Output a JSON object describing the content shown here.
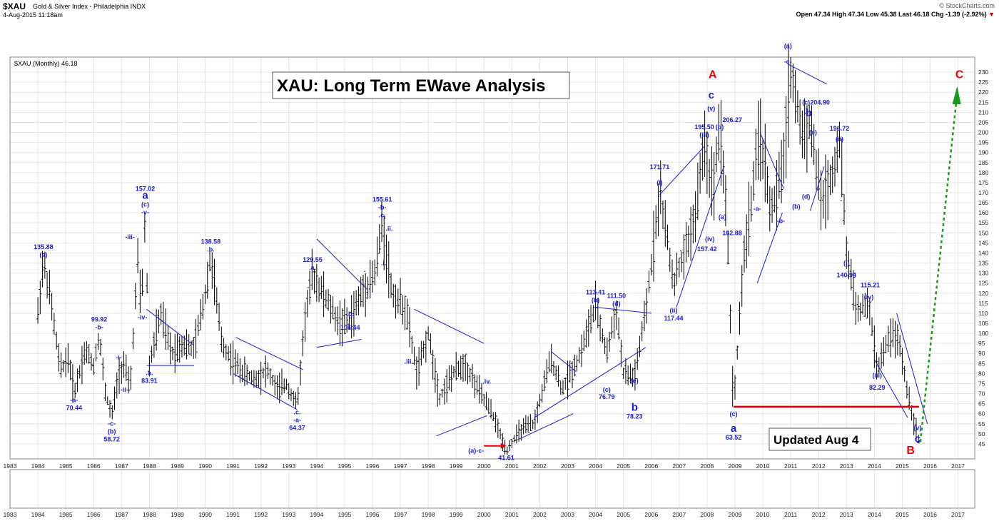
{
  "header": {
    "symbol": "$XAU",
    "name": "Gold & Silver Index - Philadelphia INDX",
    "date": "4-Aug-2015 11:18am",
    "copyright": "© StockCharts.com",
    "quote": "Open 47.34  High 47.34  Low 45.38  Last 46.18  Chg -1.39 (-2.92%)"
  },
  "legend": "$XAU (Monthly) 46.18",
  "title_box": "XAU: Long Term EWave Analysis",
  "updated_box": "Updated Aug 4",
  "colors": {
    "price": "#000000",
    "wave_label": "#1a1ad8",
    "trendline": "#1a1ad8",
    "red": "#e00000",
    "green": "#1a9a1a",
    "grid": "#e4e4e4"
  },
  "chart_data": {
    "type": "ohlc_bar",
    "title": "XAU: Long Term EWave Analysis",
    "frequency": "monthly",
    "xlim": [
      1983.0,
      2017.6
    ],
    "ylim": [
      40,
      235
    ],
    "y_ticks": [
      45,
      50,
      55,
      60,
      65,
      70,
      75,
      80,
      85,
      90,
      95,
      100,
      105,
      110,
      115,
      120,
      125,
      130,
      135,
      140,
      145,
      150,
      155,
      160,
      165,
      170,
      175,
      180,
      185,
      190,
      195,
      200,
      205,
      210,
      215,
      220,
      225,
      230
    ],
    "x_ticks": [
      "1983",
      "1984",
      "1985",
      "1986",
      "1987",
      "1988",
      "1989",
      "1990",
      "1991",
      "1992",
      "1993",
      "1994",
      "1995",
      "1996",
      "1997",
      "1998",
      "1999",
      "2000",
      "2001",
      "2002",
      "2003",
      "2004",
      "2005",
      "2006",
      "2007",
      "2008",
      "2009",
      "2010",
      "2011",
      "2012",
      "2013",
      "2014",
      "2015",
      "2016",
      "2017"
    ],
    "price_path": [
      [
        1984.0,
        110
      ],
      [
        1984.2,
        135.88
      ],
      [
        1984.45,
        118
      ],
      [
        1984.8,
        82
      ],
      [
        1985.1,
        88
      ],
      [
        1985.3,
        70.44
      ],
      [
        1985.7,
        92
      ],
      [
        1986.0,
        84
      ],
      [
        1986.2,
        99.92
      ],
      [
        1986.4,
        72
      ],
      [
        1986.65,
        58.72
      ],
      [
        1986.9,
        80
      ],
      [
        1987.1,
        85
      ],
      [
        1987.3,
        72
      ],
      [
        1987.6,
        140
      ],
      [
        1987.7,
        110
      ],
      [
        1987.85,
        157.02
      ],
      [
        1988.0,
        83.91
      ],
      [
        1988.4,
        110
      ],
      [
        1988.8,
        90
      ],
      [
        1989.2,
        95
      ],
      [
        1989.6,
        92
      ],
      [
        1990.0,
        120
      ],
      [
        1990.2,
        138.58
      ],
      [
        1990.6,
        95
      ],
      [
        1991.0,
        86
      ],
      [
        1991.4,
        80
      ],
      [
        1991.8,
        77
      ],
      [
        1992.2,
        82
      ],
      [
        1992.6,
        72
      ],
      [
        1992.9,
        75
      ],
      [
        1993.3,
        64.37
      ],
      [
        1993.6,
        110
      ],
      [
        1993.85,
        129.55
      ],
      [
        1994.3,
        118
      ],
      [
        1994.8,
        105
      ],
      [
        1995.2,
        106.44
      ],
      [
        1995.6,
        120
      ],
      [
        1996.1,
        130
      ],
      [
        1996.35,
        155.61
      ],
      [
        1996.7,
        120
      ],
      [
        1997.2,
        112
      ],
      [
        1997.6,
        80
      ],
      [
        1998.0,
        100
      ],
      [
        1998.4,
        68
      ],
      [
        1998.9,
        80
      ],
      [
        1999.3,
        85
      ],
      [
        1999.8,
        72
      ],
      [
        2000.3,
        60
      ],
      [
        2000.8,
        41.61
      ],
      [
        2001.3,
        52
      ],
      [
        2001.8,
        55
      ],
      [
        2002.4,
        88
      ],
      [
        2002.8,
        72
      ],
      [
        2003.4,
        88
      ],
      [
        2004.0,
        113.41
      ],
      [
        2004.4,
        90
      ],
      [
        2004.75,
        111.5
      ],
      [
        2005.0,
        80
      ],
      [
        2005.4,
        78.23
      ],
      [
        2005.8,
        110
      ],
      [
        2006.3,
        171.71
      ],
      [
        2006.8,
        125
      ],
      [
        2007.2,
        140
      ],
      [
        2007.6,
        160
      ],
      [
        2007.9,
        195.5
      ],
      [
        2008.2,
        170
      ],
      [
        2008.45,
        206.27
      ],
      [
        2008.7,
        160
      ],
      [
        2008.95,
        63.52
      ],
      [
        2009.3,
        135
      ],
      [
        2009.9,
        200
      ],
      [
        2010.3,
        160
      ],
      [
        2010.7,
        180
      ],
      [
        2011.0,
        230
      ],
      [
        2011.4,
        200
      ],
      [
        2011.7,
        204.9
      ],
      [
        2012.1,
        165
      ],
      [
        2012.5,
        180
      ],
      [
        2012.75,
        196.72
      ],
      [
        2013.0,
        140.94
      ],
      [
        2013.4,
        110
      ],
      [
        2013.8,
        115.21
      ],
      [
        2014.1,
        82.29
      ],
      [
        2014.6,
        100
      ],
      [
        2014.9,
        95
      ],
      [
        2015.2,
        70
      ],
      [
        2015.5,
        52
      ],
      [
        2015.6,
        46.18
      ]
    ],
    "annotations": [
      {
        "text": "135.88",
        "x": 1984.2,
        "y": 135.88,
        "pos": "above2"
      },
      {
        "text": "(a)",
        "x": 1984.2,
        "y": 135.88,
        "pos": "above1"
      },
      {
        "text": "-a-",
        "x": 1985.3,
        "y": 70.44,
        "pos": "below1"
      },
      {
        "text": "70.44",
        "x": 1985.3,
        "y": 70.44,
        "pos": "below2"
      },
      {
        "text": "99.92",
        "x": 1986.2,
        "y": 99.92,
        "pos": "above2"
      },
      {
        "text": "-b-",
        "x": 1986.2,
        "y": 99.92,
        "pos": "above1"
      },
      {
        "text": "-c-",
        "x": 1986.65,
        "y": 58.72,
        "pos": "below1"
      },
      {
        "text": "(b)",
        "x": 1986.65,
        "y": 58.72,
        "pos": "below2"
      },
      {
        "text": "58.72",
        "x": 1986.65,
        "y": 58.72,
        "pos": "below3"
      },
      {
        "text": "-i-",
        "x": 1986.9,
        "y": 88,
        "pos": "plain"
      },
      {
        "text": "-ii-",
        "x": 1987.1,
        "y": 72,
        "pos": "plain"
      },
      {
        "text": "-iii-",
        "x": 1987.3,
        "y": 148,
        "pos": "plain"
      },
      {
        "text": "-iv-",
        "x": 1987.75,
        "y": 108,
        "pos": "plain"
      },
      {
        "text": "157.02",
        "x": 1987.85,
        "y": 157.02,
        "pos": "above4"
      },
      {
        "text": "(c)",
        "x": 1987.85,
        "y": 157.02,
        "pos": "above2"
      },
      {
        "text": "-v-",
        "x": 1987.85,
        "y": 157.02,
        "pos": "above1"
      },
      {
        "text": ".a.",
        "x": 1988.0,
        "y": 83.91,
        "pos": "below1"
      },
      {
        "text": "83.91",
        "x": 1988.0,
        "y": 83.91,
        "pos": "below2"
      },
      {
        "text": "138.58",
        "x": 1990.2,
        "y": 138.58,
        "pos": "above2"
      },
      {
        "text": ".b.",
        "x": 1990.2,
        "y": 138.58,
        "pos": "above1"
      },
      {
        "text": ".c.",
        "x": 1993.3,
        "y": 64.37,
        "pos": "below1"
      },
      {
        "text": "-a-",
        "x": 1993.3,
        "y": 64.37,
        "pos": "below2"
      },
      {
        "text": "64.37",
        "x": 1993.3,
        "y": 64.37,
        "pos": "below3"
      },
      {
        "text": "129.55",
        "x": 1993.85,
        "y": 129.55,
        "pos": "above2"
      },
      {
        "text": ".a.",
        "x": 1993.85,
        "y": 129.55,
        "pos": "above1"
      },
      {
        "text": ".b.",
        "x": 1995.2,
        "y": 106.44,
        "pos": "above1"
      },
      {
        "text": "106.44",
        "x": 1995.2,
        "y": 106.44,
        "pos": "below1"
      },
      {
        "text": "155.61",
        "x": 1996.35,
        "y": 155.61,
        "pos": "above3"
      },
      {
        "text": "-b-",
        "x": 1996.35,
        "y": 155.61,
        "pos": "above2"
      },
      {
        "text": ".c.",
        "x": 1996.35,
        "y": 155.61,
        "pos": "above1"
      },
      {
        "text": ".ii.",
        "x": 1996.6,
        "y": 152,
        "pos": "plain"
      },
      {
        "text": ".i.",
        "x": 1996.4,
        "y": 135,
        "pos": "plain"
      },
      {
        "text": ".iii.",
        "x": 1997.3,
        "y": 86,
        "pos": "plain"
      },
      {
        "text": ".iv.",
        "x": 2000.1,
        "y": 76,
        "pos": "plain"
      },
      {
        "text": "(a)-c-",
        "x": 2000.0,
        "y": 41.61,
        "pos": "plainleft"
      },
      {
        "text": "41.61",
        "x": 2000.8,
        "y": 41.61,
        "pos": "below1"
      },
      {
        "text": "113.41",
        "x": 2004.0,
        "y": 113.41,
        "pos": "above2"
      },
      {
        "text": "(b)",
        "x": 2004.0,
        "y": 113.41,
        "pos": "above1"
      },
      {
        "text": "111.50",
        "x": 2004.75,
        "y": 111.5,
        "pos": "above2"
      },
      {
        "text": "(d)",
        "x": 2004.75,
        "y": 111.5,
        "pos": "above1"
      },
      {
        "text": "(c)",
        "x": 2004.4,
        "y": 72,
        "pos": "plain"
      },
      {
        "text": "76.79",
        "x": 2004.4,
        "y": 72,
        "pos": "below1"
      },
      {
        "text": "(e)",
        "x": 2005.4,
        "y": 80,
        "pos": "below1"
      },
      {
        "text": "78.23",
        "x": 2005.4,
        "y": 70,
        "pos": "below3"
      },
      {
        "text": "171.71",
        "x": 2006.3,
        "y": 171.71,
        "pos": "above3"
      },
      {
        "text": "(i)",
        "x": 2006.3,
        "y": 171.71,
        "pos": "above1"
      },
      {
        "text": "(ii)",
        "x": 2006.8,
        "y": 115,
        "pos": "below1"
      },
      {
        "text": "117.44",
        "x": 2006.8,
        "y": 115,
        "pos": "below2"
      },
      {
        "text": "195.50",
        "x": 2007.9,
        "y": 195.5,
        "pos": "above2"
      },
      {
        "text": "(iii)",
        "x": 2007.9,
        "y": 195.5,
        "pos": "above1"
      },
      {
        "text": "(v)",
        "x": 2008.15,
        "y": 212,
        "pos": "plain"
      },
      {
        "text": "206.27",
        "x": 2008.45,
        "y": 206.27,
        "pos": "plainright"
      },
      {
        "text": "(b)",
        "x": 2008.45,
        "y": 206.27,
        "pos": "below1"
      },
      {
        "text": "(a)",
        "x": 2008.55,
        "y": 158,
        "pos": "plain"
      },
      {
        "text": "162.88",
        "x": 2008.9,
        "y": 150,
        "pos": "plain"
      },
      {
        "text": "(iv)",
        "x": 2008.1,
        "y": 147,
        "pos": "plain"
      },
      {
        "text": "157.42",
        "x": 2008.0,
        "y": 142,
        "pos": "plain"
      },
      {
        "text": "(c)",
        "x": 2008.95,
        "y": 63.52,
        "pos": "below1"
      },
      {
        "text": "63.52",
        "x": 2008.95,
        "y": 63.52,
        "pos": "below4"
      },
      {
        "text": "-a-",
        "x": 2009.8,
        "y": 162,
        "pos": "plain"
      },
      {
        "text": "-b-",
        "x": 2010.65,
        "y": 156,
        "pos": "plain"
      },
      {
        "text": "(a)",
        "x": 2010.9,
        "y": 232,
        "pos": "above3"
      },
      {
        "text": "-c-",
        "x": 2010.9,
        "y": 232,
        "pos": "above1"
      },
      {
        "text": "(c)",
        "x": 2011.55,
        "y": 215,
        "pos": "plain"
      },
      {
        "text": "204.90",
        "x": 2012.05,
        "y": 215,
        "pos": "plain"
      },
      {
        "text": "(e)",
        "x": 2011.8,
        "y": 200,
        "pos": "plain"
      },
      {
        "text": "196.72",
        "x": 2012.75,
        "y": 202,
        "pos": "plain"
      },
      {
        "text": "(ii)",
        "x": 2012.75,
        "y": 196.72,
        "pos": "plain"
      },
      {
        "text": "(d)",
        "x": 2011.55,
        "y": 168,
        "pos": "plain"
      },
      {
        "text": "(b)",
        "x": 2011.2,
        "y": 163,
        "pos": "plain"
      },
      {
        "text": "(i)",
        "x": 2013.0,
        "y": 135,
        "pos": "plain"
      },
      {
        "text": "140.94",
        "x": 2013.0,
        "y": 129,
        "pos": "plain"
      },
      {
        "text": "115.21",
        "x": 2013.85,
        "y": 124,
        "pos": "plain"
      },
      {
        "text": "(iv)",
        "x": 2013.8,
        "y": 118,
        "pos": "plain"
      },
      {
        "text": "(iii)",
        "x": 2014.1,
        "y": 79,
        "pos": "plain"
      },
      {
        "text": "82.29",
        "x": 2014.1,
        "y": 73,
        "pos": "plain"
      },
      {
        "text": "(v)",
        "x": 2015.55,
        "y": 53,
        "pos": "plain"
      }
    ],
    "wave_labels_big": [
      {
        "text": "a",
        "x": 1987.85,
        "y": 157.02,
        "pos": "above3"
      },
      {
        "text": "b",
        "x": 2005.4,
        "y": 70,
        "pos": "below2"
      },
      {
        "text": "c",
        "x": 2008.15,
        "y": 218,
        "pos": "plainbig"
      },
      {
        "text": "a",
        "x": 2008.95,
        "y": 63.52,
        "pos": "below3"
      },
      {
        "text": "b",
        "x": 2011.65,
        "y": 209,
        "pos": "plainbig"
      },
      {
        "text": "c",
        "x": 2015.55,
        "y": 47,
        "pos": "plainbig"
      }
    ],
    "red_labels": [
      {
        "text": "A",
        "x": 2008.2,
        "y": 227
      },
      {
        "text": "B",
        "x": 2015.3,
        "y": 40
      },
      {
        "text": "C",
        "x": 2017.05,
        "y": 227
      }
    ]
  }
}
